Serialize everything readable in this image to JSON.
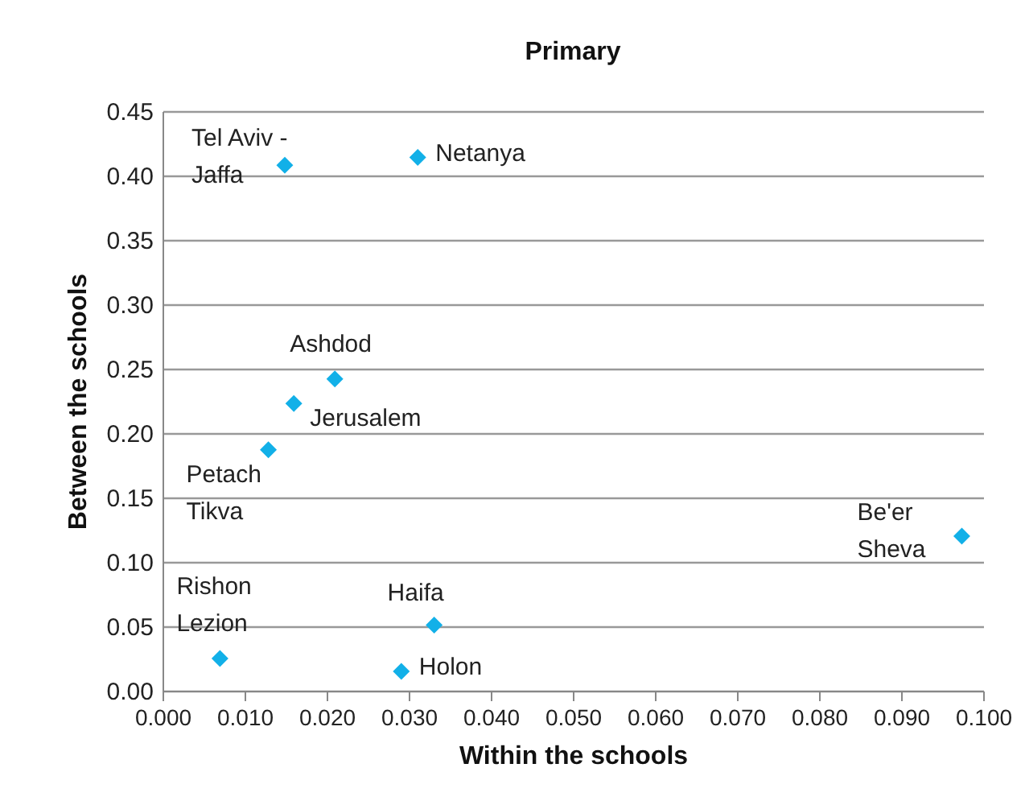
{
  "chart_data": {
    "type": "scatter",
    "title": "Primary",
    "xlabel": "Within the schools",
    "ylabel": "Between the schools",
    "x": [
      0.0149,
      0.0311,
      0.021,
      0.016,
      0.0129,
      0.0974,
      0.007,
      0.0331,
      0.0291
    ],
    "series": [
      {
        "color": "#12b0e8",
        "values": [
          0.408,
          0.414,
          0.242,
          0.223,
          0.187,
          0.12,
          0.025,
          0.051,
          0.015
        ]
      }
    ],
    "marker": "diamond",
    "grid": "y",
    "xlim": [
      0,
      0.1
    ],
    "xticks": [
      {
        "value": 0,
        "label": "0.000"
      },
      {
        "value": 0.01,
        "label": "0.010"
      },
      {
        "value": 0.02,
        "label": "0.020"
      },
      {
        "value": 0.03,
        "label": "0.030"
      },
      {
        "value": 0.04,
        "label": "0.040"
      },
      {
        "value": 0.05,
        "label": "0.050"
      },
      {
        "value": 0.06,
        "label": "0.060"
      },
      {
        "value": 0.07,
        "label": "0.070"
      },
      {
        "value": 0.08,
        "label": "0.080"
      },
      {
        "value": 0.09,
        "label": "0.090"
      },
      {
        "value": 0.1,
        "label": "0.100"
      }
    ],
    "ylim": [
      0,
      0.45
    ],
    "yticks": [
      {
        "value": 0,
        "label": "0.00"
      },
      {
        "value": 0.05,
        "label": "0.05"
      },
      {
        "value": 0.1,
        "label": "0.10"
      },
      {
        "value": 0.15,
        "label": "0.15"
      },
      {
        "value": 0.2,
        "label": "0.20"
      },
      {
        "value": 0.25,
        "label": "0.25"
      },
      {
        "value": 0.3,
        "label": "0.30"
      },
      {
        "value": 0.35,
        "label": "0.35"
      },
      {
        "value": 0.4,
        "label": "0.40"
      },
      {
        "value": 0.45,
        "label": "0.45"
      }
    ],
    "annotations": [
      {
        "text": "Tel Aviv - Jaffa",
        "x": 0.0149,
        "y": 0.408
      },
      {
        "text": "Netanya",
        "x": 0.0311,
        "y": 0.414
      },
      {
        "text": "Ashdod",
        "x": 0.021,
        "y": 0.242
      },
      {
        "text": "Jerusalem",
        "x": 0.016,
        "y": 0.223
      },
      {
        "text": "Petach Tikva",
        "x": 0.0129,
        "y": 0.187
      },
      {
        "text": "Be'er Sheva",
        "x": 0.0974,
        "y": 0.12
      },
      {
        "text": "Rishon Lezion",
        "x": 0.007,
        "y": 0.025
      },
      {
        "text": "Haifa",
        "x": 0.0331,
        "y": 0.051
      },
      {
        "text": "Holon",
        "x": 0.0291,
        "y": 0.015
      }
    ]
  }
}
